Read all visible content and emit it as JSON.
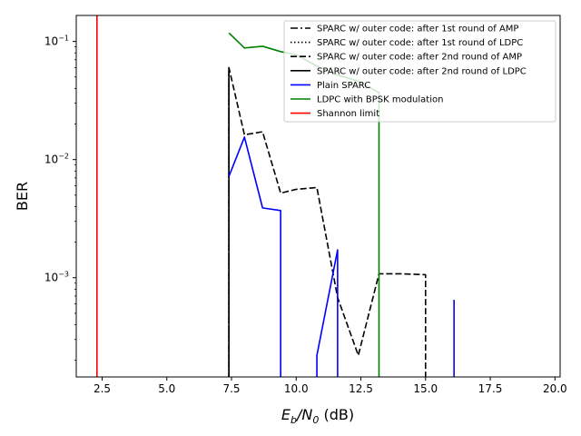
{
  "chart_data": {
    "type": "line",
    "title": "",
    "xlabel": "E_b/N_0 (dB)",
    "xlabel_parts": {
      "main": "E",
      "sub1": "b",
      "slash": "/N",
      "sub2": "0",
      "unit": " (dB)"
    },
    "ylabel": "BER",
    "xlim": [
      1.5,
      20.2
    ],
    "ylim_log10": [
      -3.84,
      -0.78
    ],
    "yscale": "log",
    "grid": false,
    "legend_position": "top-right",
    "x_ticks": [
      {
        "value": 2.5,
        "label": "2.5"
      },
      {
        "value": 5.0,
        "label": "5.0"
      },
      {
        "value": 7.5,
        "label": "7.5"
      },
      {
        "value": 10.0,
        "label": "10.0"
      },
      {
        "value": 12.5,
        "label": "12.5"
      },
      {
        "value": 15.0,
        "label": "15.0"
      },
      {
        "value": 17.5,
        "label": "17.5"
      },
      {
        "value": 20.0,
        "label": "20.0"
      }
    ],
    "y_ticks": [
      {
        "exp": -1,
        "label_base": "10",
        "label_exp": "−1"
      },
      {
        "exp": -2,
        "label_base": "10",
        "label_exp": "−2"
      },
      {
        "exp": -3,
        "label_base": "10",
        "label_exp": "−3"
      }
    ],
    "series": [
      {
        "name": "SPARC w/ outer code: after 1st round of AMP",
        "color": "#000000",
        "dash": "dashdot",
        "points": [
          [
            7.4,
            0.0001
          ],
          [
            7.4,
            0.06
          ]
        ]
      },
      {
        "name": "SPARC w/ outer code: after 1st round of LDPC",
        "color": "#000000",
        "dash": "dotted",
        "points": [
          [
            7.4,
            0.0001
          ],
          [
            7.4,
            0.06
          ]
        ]
      },
      {
        "name": "SPARC w/ outer code: after 2nd round of AMP",
        "color": "#000000",
        "dash": "dashed",
        "points": [
          [
            7.4,
            0.0001
          ],
          [
            7.4,
            0.06
          ],
          [
            8.0,
            0.0162
          ],
          [
            8.7,
            0.0172
          ],
          [
            9.4,
            0.0052
          ],
          [
            10.0,
            0.0056
          ],
          [
            10.8,
            0.0058
          ],
          [
            11.6,
            0.00068
          ],
          [
            12.4,
            0.00022
          ],
          [
            13.2,
            0.00108
          ],
          [
            14.0,
            0.00108
          ],
          [
            15.0,
            0.00106
          ],
          [
            15.0,
            0.0001
          ]
        ]
      },
      {
        "name": "SPARC w/ outer code: after 2nd round of LDPC",
        "color": "#000000",
        "dash": "solid",
        "points": [
          [
            7.4,
            0.0001
          ],
          [
            7.4,
            0.06
          ]
        ]
      },
      {
        "name": "Plain SPARC",
        "color": "#0000ff",
        "dash": "solid",
        "segments": [
          [
            [
              7.4,
              0.0072
            ],
            [
              8.0,
              0.0155
            ],
            [
              8.7,
              0.0039
            ],
            [
              9.4,
              0.0037
            ],
            [
              9.4,
              0.0001
            ]
          ],
          [
            [
              10.8,
              0.0001
            ],
            [
              10.8,
              0.00022
            ],
            [
              11.6,
              0.00172
            ],
            [
              11.6,
              0.0001
            ]
          ],
          [
            [
              16.1,
              0.0001
            ],
            [
              16.1,
              0.00065
            ]
          ]
        ]
      },
      {
        "name": "LDPC with BPSK modulation",
        "color": "#008000",
        "dash": "solid",
        "points": [
          [
            7.4,
            0.118
          ],
          [
            8.0,
            0.088
          ],
          [
            8.7,
            0.091
          ],
          [
            9.4,
            0.082
          ],
          [
            10.0,
            0.077
          ],
          [
            10.8,
            0.062
          ],
          [
            11.6,
            0.052
          ],
          [
            12.4,
            0.046
          ],
          [
            13.2,
            0.037
          ],
          [
            13.2,
            0.0001
          ]
        ]
      },
      {
        "name": "Shannon limit",
        "color": "#ff0000",
        "dash": "solid",
        "points": [
          [
            2.3,
            0.0001
          ],
          [
            2.3,
            1.0
          ]
        ]
      }
    ]
  }
}
